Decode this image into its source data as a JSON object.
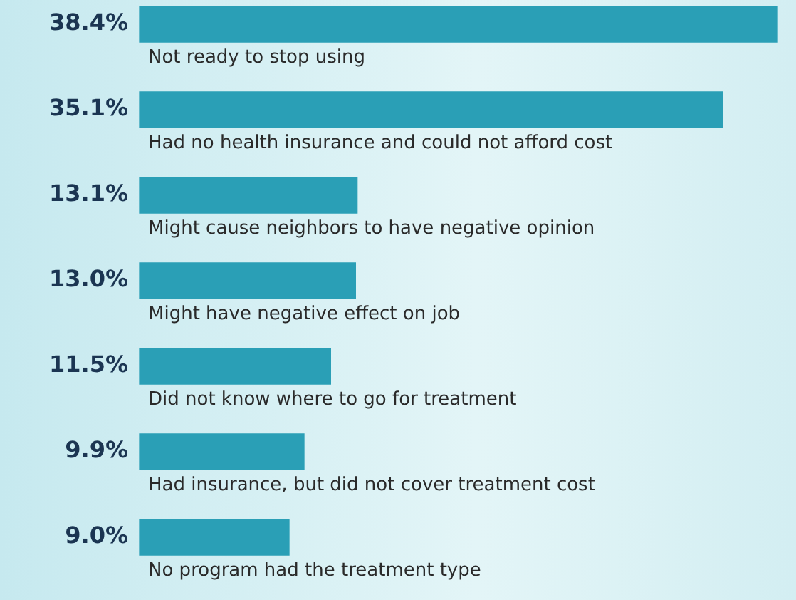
{
  "chart_data": {
    "type": "bar",
    "orientation": "horizontal",
    "categories": [
      "Not ready to stop using",
      "Had no health insurance and could not afford cost",
      "Might cause neighbors to have negative opinion",
      "Might have negative effect on job",
      "Did not know where to go for treatment",
      "Had insurance, but did not cover treatment cost",
      "No program had the treatment type"
    ],
    "values": [
      38.4,
      35.1,
      13.1,
      13.0,
      11.5,
      9.9,
      9.0
    ],
    "value_labels": [
      "38.4%",
      "35.1%",
      "13.1%",
      "13.0%",
      "11.5%",
      "9.9%",
      "9.0%"
    ],
    "color": "#2a9fb6"
  }
}
